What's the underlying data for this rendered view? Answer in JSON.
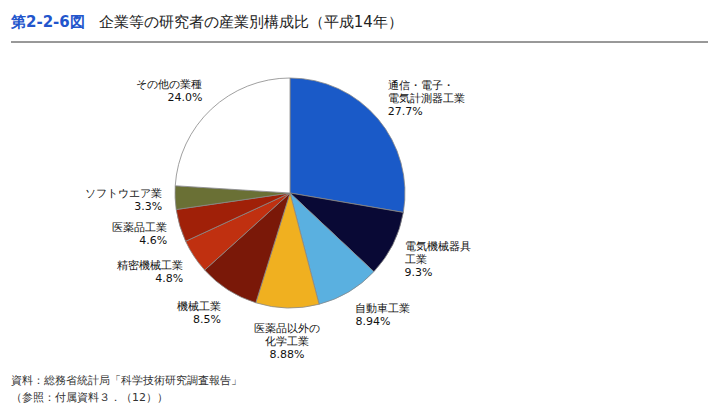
{
  "chart_data": {
    "type": "pie",
    "title": "第2-2-6図",
    "subtitle": "企業等の研究者の産業別構成比（平成14年）",
    "categories": [
      "通信・電子・\n電気計測器工業",
      "電気機械器具\n工業",
      "自動車工業",
      "医薬品以外の\n化学工業",
      "機械工業",
      "精密機械工業",
      "医薬品工業",
      "ソフトウエア業",
      "その他の業種"
    ],
    "values": [
      27.7,
      9.3,
      8.94,
      8.88,
      8.5,
      4.8,
      4.6,
      3.3,
      24.0
    ],
    "value_labels": [
      "27.7%",
      "9.3%",
      "8.94%",
      "8.88%",
      "8.5%",
      "4.8%",
      "4.6%",
      "3.3%",
      "24.0%"
    ],
    "colors": [
      "#1a5ac8",
      "#090935",
      "#5ab0e0",
      "#f0b020",
      "#7a1808",
      "#c03010",
      "#a02008",
      "#6a7035",
      "#ffffff"
    ],
    "data_labels": true,
    "annotations": [
      "資料：総務省統計局「科学技術研究調査報告」",
      "（参照：付属資料３．（12））"
    ]
  }
}
